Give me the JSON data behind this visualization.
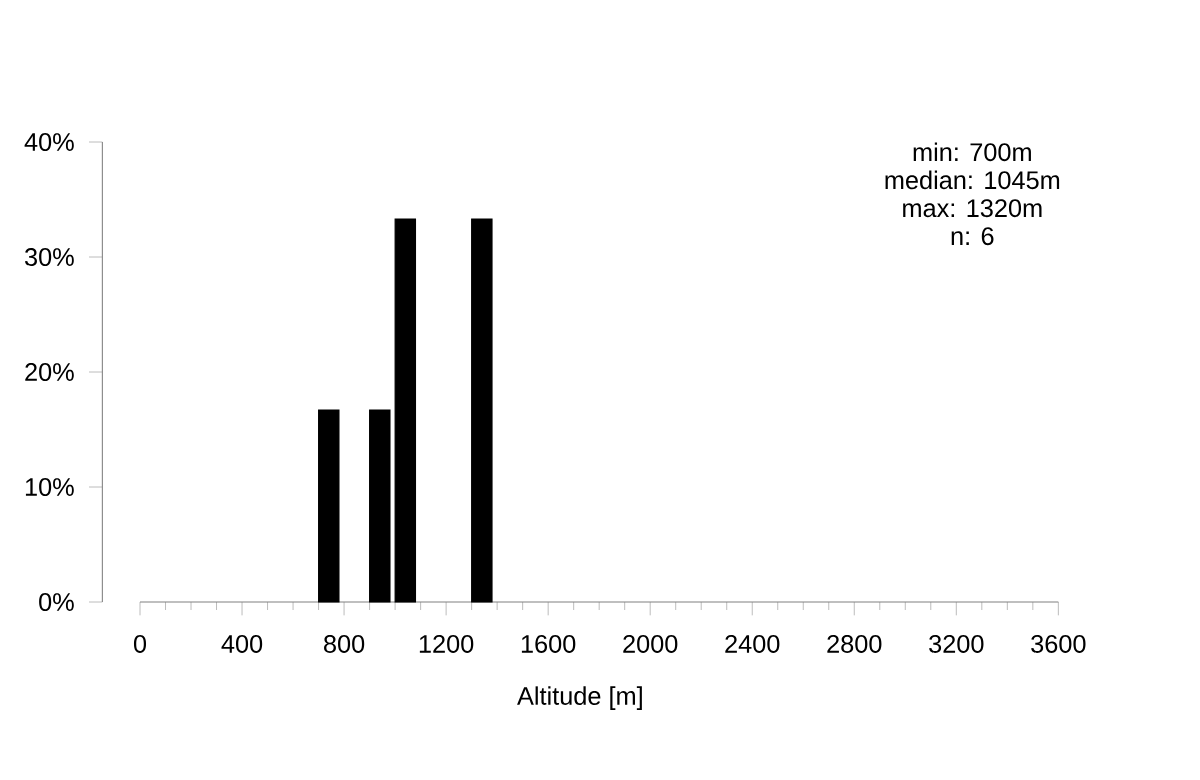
{
  "chart_data": {
    "type": "bar",
    "xlabel": "Altitude [m]",
    "x": [
      740,
      940,
      1040,
      1340
    ],
    "values": [
      16.7,
      16.7,
      33.3,
      33.3
    ],
    "color": "#000000",
    "xlim": [
      0,
      3600
    ],
    "xticks": [
      0,
      400,
      800,
      1200,
      1600,
      2000,
      2400,
      2800,
      3200,
      3600
    ],
    "ylim": [
      0,
      40
    ],
    "yticks": [
      {
        "value": 0,
        "label": "0%"
      },
      {
        "value": 10,
        "label": "10%"
      },
      {
        "value": 20,
        "label": "20%"
      },
      {
        "value": 30,
        "label": "30%"
      },
      {
        "value": 40,
        "label": "40%"
      }
    ],
    "annotations": [
      "min: 700m",
      "median: 1045m",
      "max: 1320m",
      "n:  6"
    ]
  }
}
